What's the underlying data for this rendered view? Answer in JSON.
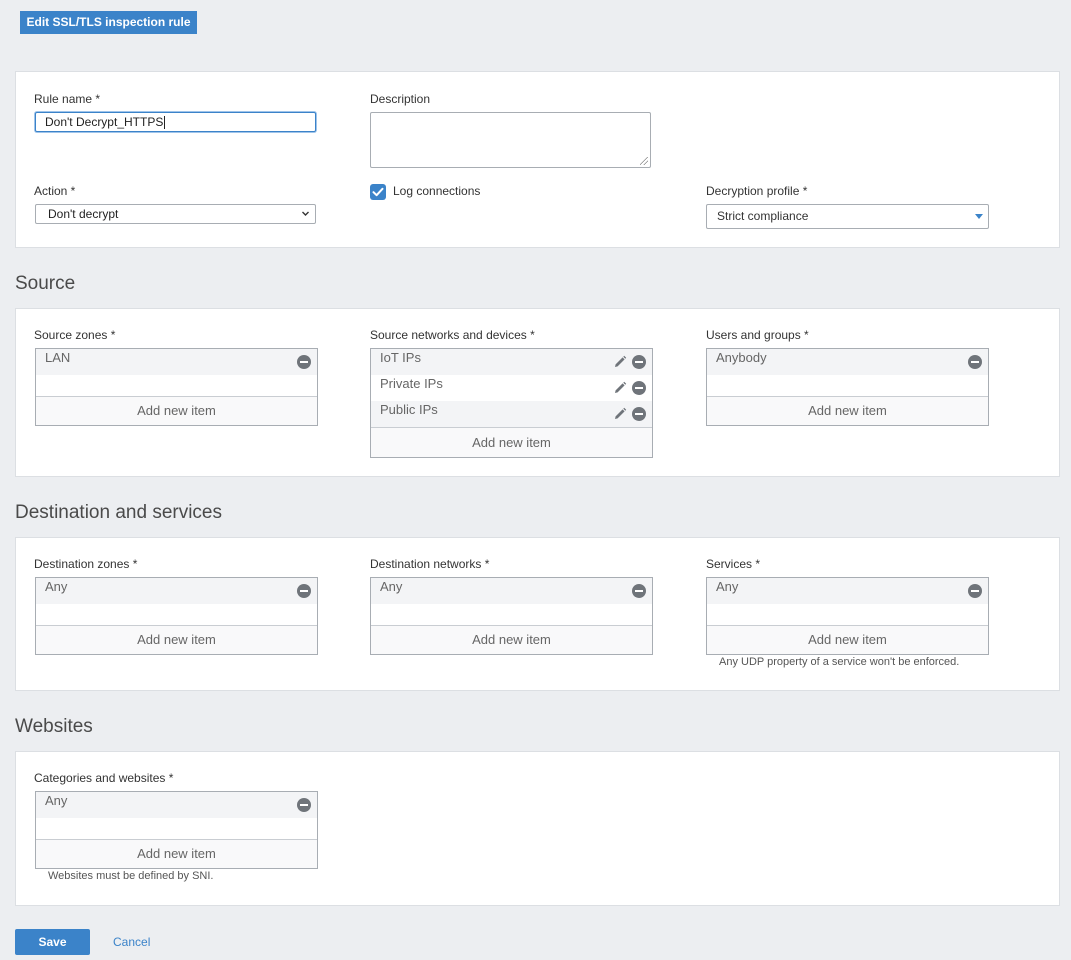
{
  "header": {
    "title": "Edit SSL/TLS inspection rule"
  },
  "general": {
    "rule_name_label": "Rule name *",
    "rule_name_value": "Don't Decrypt_HTTPS",
    "description_label": "Description",
    "description_value": "",
    "action_label": "Action *",
    "action_value": "Don't decrypt",
    "log_connections_label": "Log connections",
    "log_connections_checked": true,
    "decryption_profile_label": "Decryption profile *",
    "decryption_profile_value": "Strict compliance"
  },
  "source": {
    "heading": "Source",
    "zones": {
      "label": "Source zones *",
      "items": [
        "LAN"
      ],
      "add_label": "Add new item"
    },
    "networks": {
      "label": "Source networks and devices *",
      "items": [
        "IoT IPs",
        "Private IPs",
        "Public IPs"
      ],
      "add_label": "Add new item"
    },
    "users": {
      "label": "Users and groups *",
      "items": [
        "Anybody"
      ],
      "add_label": "Add new item"
    }
  },
  "destination": {
    "heading": "Destination and services",
    "zones": {
      "label": "Destination zones *",
      "items": [
        "Any"
      ],
      "add_label": "Add new item"
    },
    "networks": {
      "label": "Destination networks *",
      "items": [
        "Any"
      ],
      "add_label": "Add new item"
    },
    "services": {
      "label": "Services *",
      "items": [
        "Any"
      ],
      "add_label": "Add new item",
      "hint": "Any UDP property of a service won't be enforced."
    }
  },
  "websites": {
    "heading": "Websites",
    "categories": {
      "label": "Categories and websites *",
      "items": [
        "Any"
      ],
      "add_label": "Add new item",
      "hint": "Websites must be defined by SNI."
    }
  },
  "footer": {
    "save_label": "Save",
    "cancel_label": "Cancel"
  },
  "colors": {
    "accent": "#3b83c9",
    "background": "#eceef1",
    "panel": "#ffffff"
  }
}
